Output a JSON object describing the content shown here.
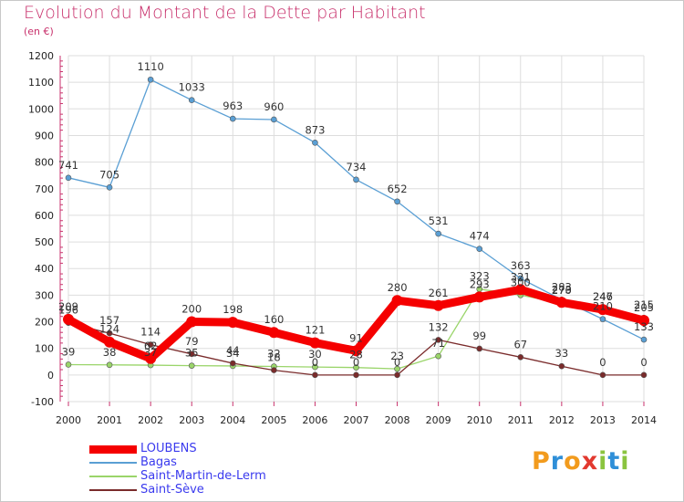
{
  "header": {
    "title": "Evolution du Montant de la Dette par Habitant",
    "unit": "(en €)"
  },
  "logo": {
    "text": "Proxiti",
    "colors": [
      "#f29b1d",
      "#2f8fd8",
      "#f29b1d",
      "#e2392f",
      "#8ac43f",
      "#2f8fd8",
      "#8ac43f"
    ]
  },
  "chart_data": {
    "type": "line",
    "title": "Evolution du Montant de la Dette par Habitant",
    "ylabel": "(en €)",
    "xlabel": "",
    "x": [
      "2000",
      "2001",
      "2002",
      "2003",
      "2004",
      "2005",
      "2006",
      "2007",
      "2008",
      "2009",
      "2010",
      "2011",
      "2012",
      "2013",
      "2014"
    ],
    "ylim": [
      -100,
      1200
    ],
    "yticks": [
      -100,
      0,
      100,
      200,
      300,
      400,
      500,
      600,
      700,
      800,
      900,
      1000,
      1100,
      1200
    ],
    "grid": true,
    "legend_position": "bottom-left",
    "series": [
      {
        "name": "LOUBENS",
        "color": "#f50000",
        "emphasis": true,
        "values": [
          209,
          124,
          62,
          200,
          198,
          160,
          121,
          91,
          280,
          261,
          293,
          321,
          273,
          246,
          205
        ]
      },
      {
        "name": "Bagas",
        "color": "#5a9fd4",
        "emphasis": false,
        "values": [
          741,
          705,
          1110,
          1033,
          963,
          960,
          873,
          734,
          652,
          531,
          474,
          363,
          283,
          210,
          133
        ]
      },
      {
        "name": "Saint-Martin-de-Lerm",
        "color": "#9ad56a",
        "emphasis": false,
        "values": [
          39,
          38,
          37,
          35,
          34,
          32,
          30,
          28,
          23,
          71,
          323,
          300,
          270,
          247,
          215
        ]
      },
      {
        "name": "Saint-Sève",
        "color": "#7a2b2b",
        "emphasis": false,
        "values": [
          196,
          157,
          114,
          79,
          44,
          18,
          0,
          0,
          0,
          132,
          99,
          67,
          33,
          0,
          0
        ]
      }
    ]
  }
}
